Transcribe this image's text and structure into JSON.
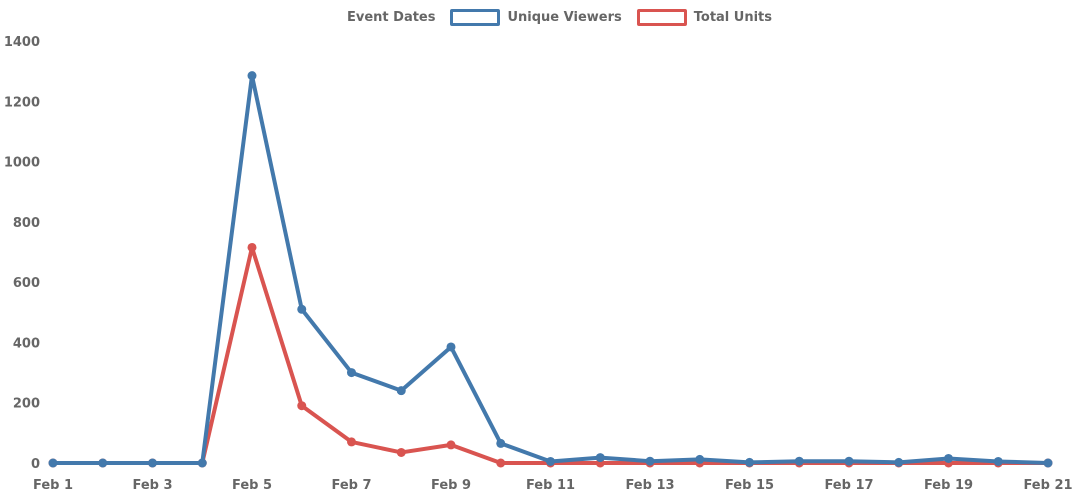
{
  "page": {
    "background_color": "#ffffff",
    "axis_text_color": "#666666"
  },
  "legend": {
    "title": "Event Dates",
    "position": "top"
  },
  "chart_data": {
    "type": "line",
    "title": "",
    "xlabel": "Event Dates",
    "ylabel": "",
    "categories": [
      "Feb 1",
      "Feb 2",
      "Feb 3",
      "Feb 4",
      "Feb 5",
      "Feb 6",
      "Feb 7",
      "Feb 8",
      "Feb 9",
      "Feb 10",
      "Feb 11",
      "Feb 12",
      "Feb 13",
      "Feb 14",
      "Feb 15",
      "Feb 16",
      "Feb 17",
      "Feb 18",
      "Feb 19",
      "Feb 20",
      "Feb 21"
    ],
    "x_tick_labels": [
      "Feb 1",
      "Feb 3",
      "Feb 5",
      "Feb 7",
      "Feb 9",
      "Feb 11",
      "Feb 13",
      "Feb 15",
      "Feb 17",
      "Feb 19",
      "Feb 21"
    ],
    "x_label_every": 2,
    "series": [
      {
        "name": "Unique Viewers",
        "color": "#4379ac",
        "values": [
          0,
          0,
          0,
          0,
          1285,
          510,
          300,
          240,
          385,
          65,
          5,
          18,
          6,
          12,
          2,
          6,
          6,
          2,
          15,
          5,
          0
        ]
      },
      {
        "name": "Total Units",
        "color": "#d95450",
        "values": [
          0,
          0,
          0,
          0,
          715,
          190,
          70,
          35,
          60,
          0,
          0,
          0,
          0,
          0,
          0,
          0,
          0,
          0,
          0,
          0,
          0
        ]
      }
    ],
    "ylim": [
      0,
      1400
    ],
    "ytick_step": 200,
    "y_tick_labels": [
      "0",
      "200",
      "400",
      "600",
      "800",
      "1000",
      "1200",
      "1400"
    ],
    "grid": false,
    "legend_position": "top",
    "marker": "circle"
  }
}
